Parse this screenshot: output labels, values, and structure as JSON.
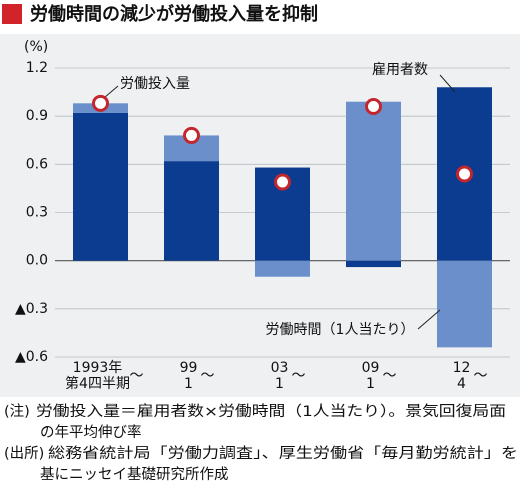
{
  "chart_data": {
    "type": "stacked_bar_with_markers",
    "title": "労働時間の減少が労働投入量を抑制",
    "y_unit": "(%)",
    "categories": [
      [
        "1993年",
        "第4四半期"
      ],
      [
        "99",
        "1"
      ],
      [
        "03",
        "1"
      ],
      [
        "09",
        "1"
      ],
      [
        "12",
        "4"
      ]
    ],
    "range_mark": "～",
    "series": [
      {
        "name": "雇用者数",
        "color": "#0b3c8f",
        "values": [
          0.92,
          0.62,
          0.58,
          -0.04,
          1.08
        ]
      },
      {
        "name": "労働時間（1人当たり）",
        "color": "#6a8fca",
        "values": [
          0.06,
          0.16,
          -0.1,
          0.99,
          -0.54
        ]
      }
    ],
    "markers": {
      "name": "労働投入量",
      "color": "#c4262e",
      "values": [
        0.98,
        0.78,
        0.49,
        0.96,
        0.54
      ]
    },
    "ylim": [
      -0.6,
      1.2
    ],
    "yticks": [
      1.2,
      0.9,
      0.6,
      0.3,
      {
        "value": 0,
        "label": "0.0"
      },
      {
        "value": -0.3,
        "label": "▲0.3"
      },
      {
        "value": -0.6,
        "label": "▲0.6"
      }
    ],
    "grid": true,
    "notes": [
      {
        "label": "(注)",
        "lines": [
          "労働投入量＝雇用者数×労働時間（1人当たり）。景気回復局面",
          "の年平均伸び率"
        ]
      },
      {
        "label": "(出所)",
        "lines": [
          "総務省統計局「労働力調査」、厚生労働省「毎月勤労統計」を",
          "基にニッセイ基礎研究所作成"
        ]
      }
    ]
  }
}
